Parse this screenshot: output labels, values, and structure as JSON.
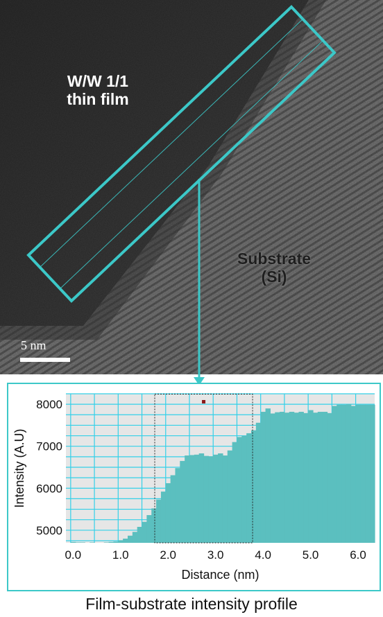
{
  "image": {
    "film_label_line1": "W/W 1/1",
    "film_label_line2": "thin film",
    "substrate_label_line1": "Substrate",
    "substrate_label_line2": "(Si)",
    "scale_bar_label": "5 nm"
  },
  "colors": {
    "accent": "#3cc8c8",
    "fill": "#5bbfbf",
    "plot_bg": "#e6e6e6",
    "grid": "#33d0e8",
    "marker": "#8b1a1a"
  },
  "caption": "Film-substrate intensity profile",
  "chart_data": {
    "type": "area",
    "title": "",
    "xlabel": "Distance (nm)",
    "ylabel": "Intensity (A.U)",
    "xlim": [
      -0.15,
      6.35
    ],
    "ylim": [
      4700,
      8250
    ],
    "xticks": [
      "0.0",
      "1.0",
      "2.0",
      "3.0",
      "4.0",
      "5.0",
      "6.0"
    ],
    "xtick_values": [
      0,
      1,
      2,
      3,
      4,
      5,
      6
    ],
    "yticks": [
      "5000",
      "6000",
      "7000",
      "8000"
    ],
    "ytick_values": [
      5000,
      6000,
      7000,
      8000
    ],
    "grid": true,
    "highlight_region": [
      1.72,
      3.78
    ],
    "marker_point": {
      "x": 2.75,
      "y": 8060
    },
    "x": [
      0.0,
      0.1,
      0.2,
      0.3,
      0.4,
      0.5,
      0.6,
      0.7,
      0.8,
      0.9,
      1.0,
      1.1,
      1.2,
      1.3,
      1.4,
      1.5,
      1.6,
      1.7,
      1.8,
      1.9,
      2.0,
      2.1,
      2.2,
      2.3,
      2.4,
      2.5,
      2.6,
      2.7,
      2.8,
      2.9,
      3.0,
      3.1,
      3.2,
      3.3,
      3.4,
      3.5,
      3.6,
      3.7,
      3.8,
      3.9,
      4.0,
      4.1,
      4.2,
      4.3,
      4.4,
      4.5,
      4.6,
      4.7,
      4.8,
      4.9,
      5.0,
      5.1,
      5.2,
      5.3,
      5.4,
      5.5,
      5.6,
      5.7,
      5.8,
      5.9,
      6.0,
      6.1,
      6.2,
      6.3
    ],
    "values": [
      4720,
      4710,
      4710,
      4700,
      4710,
      4700,
      4700,
      4710,
      4720,
      4730,
      4760,
      4800,
      4870,
      4960,
      5080,
      5200,
      5360,
      5520,
      5730,
      5920,
      6120,
      6310,
      6480,
      6650,
      6780,
      6790,
      6800,
      6830,
      6770,
      6760,
      6800,
      6830,
      6780,
      6900,
      7100,
      7220,
      7250,
      7310,
      7380,
      7560,
      7820,
      7900,
      7780,
      7810,
      7820,
      7800,
      7820,
      7800,
      7820,
      7790,
      7860,
      7800,
      7820,
      7820,
      7790,
      7960,
      7990,
      7990,
      8000,
      7960,
      7990,
      7990,
      7990,
      7990
    ]
  }
}
